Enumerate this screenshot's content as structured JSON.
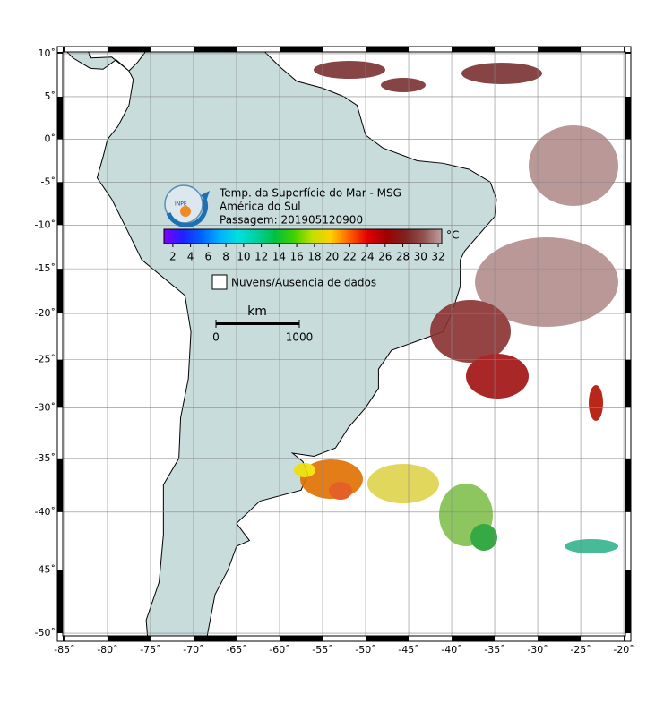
{
  "map": {
    "title_lines": [
      "Temp. da Superfície do Mar - MSG",
      "América do Sul",
      "Passagem: 201905120900"
    ],
    "logo_text": "INPE",
    "lon_range": [
      -85.2,
      -19.8
    ],
    "lat_range": [
      10.2,
      -50.2
    ],
    "lon_ticks": [
      {
        "value": -85,
        "label": "-85˚"
      },
      {
        "value": -80,
        "label": "-80˚"
      },
      {
        "value": -75,
        "label": "-75˚"
      },
      {
        "value": -70,
        "label": "-70˚"
      },
      {
        "value": -65,
        "label": "-65˚"
      },
      {
        "value": -60,
        "label": "-60˚"
      },
      {
        "value": -55,
        "label": "-55˚"
      },
      {
        "value": -50,
        "label": "-50˚"
      },
      {
        "value": -45,
        "label": "-45˚"
      },
      {
        "value": -40,
        "label": "-40˚"
      },
      {
        "value": -35,
        "label": "-35˚"
      },
      {
        "value": -30,
        "label": "-30˚"
      },
      {
        "value": -25,
        "label": "-25˚"
      },
      {
        "value": -20,
        "label": "-20˚"
      }
    ],
    "lat_ticks": [
      {
        "value": 10,
        "label": "10˚"
      },
      {
        "value": 5,
        "label": "5˚"
      },
      {
        "value": 0,
        "label": "0˚"
      },
      {
        "value": -5,
        "label": "-5˚"
      },
      {
        "value": -10,
        "label": "-10˚"
      },
      {
        "value": -15,
        "label": "-15˚"
      },
      {
        "value": -20,
        "label": "-20˚"
      },
      {
        "value": -25,
        "label": "-25˚"
      },
      {
        "value": -30,
        "label": "-30˚"
      },
      {
        "value": -35,
        "label": "-35˚"
      },
      {
        "value": -40,
        "label": "-40˚"
      },
      {
        "value": -45,
        "label": "-45˚"
      },
      {
        "value": -50,
        "label": "-50˚"
      }
    ],
    "colorbar": {
      "unit": "°C",
      "range": [
        1,
        32.4
      ],
      "ticks": [
        2,
        4,
        6,
        8,
        10,
        12,
        14,
        16,
        18,
        20,
        22,
        24,
        26,
        28,
        30,
        32
      ],
      "colors": [
        "#8000ff",
        "#2020ff",
        "#0060ff",
        "#00b0ff",
        "#00e0e0",
        "#00d0a0",
        "#00c040",
        "#40d000",
        "#c0e000",
        "#ffd000",
        "#ff6000",
        "#e00000",
        "#a00000",
        "#802020",
        "#905050",
        "#c0a0a0"
      ]
    },
    "legend": {
      "label": "Nuvens/Ausencia de dados"
    },
    "scale_bar": {
      "unit": "km",
      "ticks": [
        0,
        1000
      ]
    }
  }
}
